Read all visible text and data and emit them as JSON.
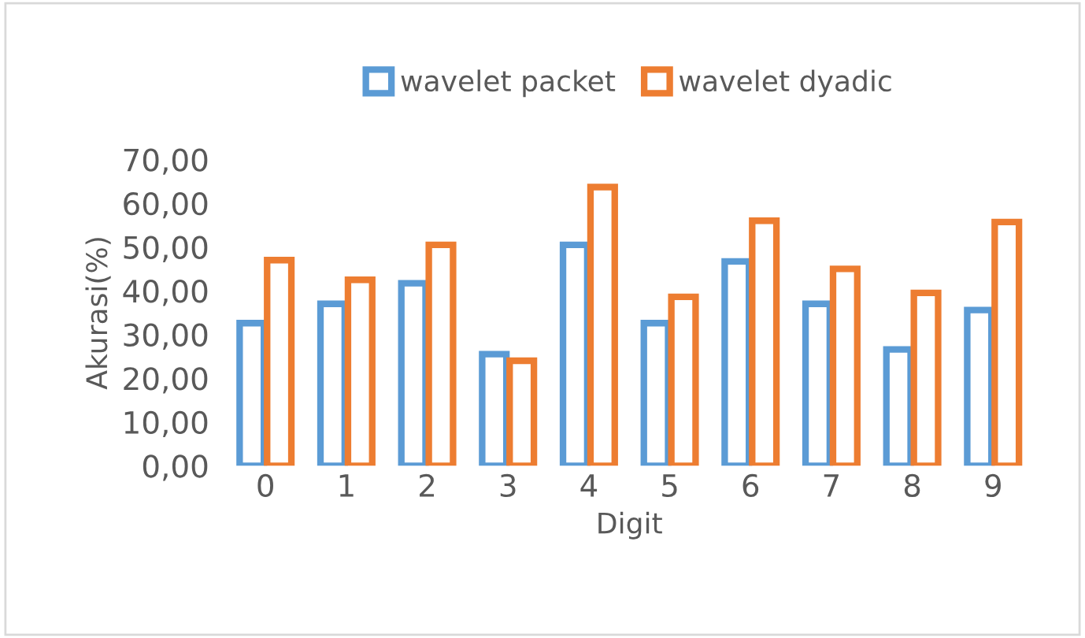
{
  "chart_data": {
    "type": "bar",
    "xlabel": "Digit",
    "ylabel": "Akurasi(%)",
    "categories": [
      "0",
      "1",
      "2",
      "3",
      "4",
      "5",
      "6",
      "7",
      "8",
      "9"
    ],
    "series": [
      {
        "name": "wavelet packet",
        "color": "#5b9bd5",
        "values": [
          32.6,
          37,
          41.7,
          25.5,
          50.5,
          32.6,
          46.7,
          37,
          26.6,
          35.6
        ]
      },
      {
        "name": "wavelet dyadic",
        "color": "#ed7d31",
        "values": [
          47,
          42.5,
          50.5,
          24,
          63.7,
          38.6,
          56,
          45,
          39.5,
          55.7
        ]
      }
    ],
    "ylim": [
      0,
      70
    ],
    "yticks": [
      {
        "value": 0,
        "label": "0,00"
      },
      {
        "value": 10,
        "label": "10,00"
      },
      {
        "value": 20,
        "label": "20,00"
      },
      {
        "value": 30,
        "label": "30,00"
      },
      {
        "value": 40,
        "label": "40,00"
      },
      {
        "value": 50,
        "label": "50,00"
      },
      {
        "value": 60,
        "label": "60,00"
      },
      {
        "value": 70,
        "label": "70,00"
      }
    ],
    "grid": false,
    "legend": "top"
  }
}
